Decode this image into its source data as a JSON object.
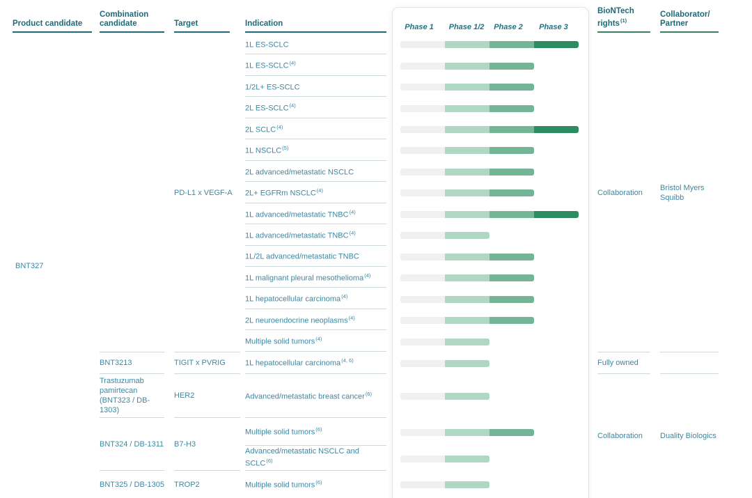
{
  "header": {
    "product": "Product candidate",
    "combination": "Combination candidate",
    "target": "Target",
    "indication": "Indication",
    "rights": "BioNTech rights",
    "rights_note": "(1)",
    "collaborator_line1": "Collaborator/",
    "collaborator_line2": "Partner"
  },
  "pipeline": {
    "product": "BNT327",
    "phases": [
      "Phase 1",
      "Phase 1/2",
      "Phase 2",
      "Phase 3"
    ],
    "phase_colors": [
      "#eff1f0",
      "#afd7c4",
      "#74b497",
      "#2e8c61"
    ],
    "rows": [
      {
        "indication": "1L ES-SCLC",
        "note": "",
        "progress": 4
      },
      {
        "indication": "1L ES-SCLC",
        "note": "(4)",
        "progress": 3
      },
      {
        "indication": "1/2L+ ES-SCLC",
        "note": "",
        "progress": 3
      },
      {
        "indication": "2L ES-SCLC",
        "note": "(4)",
        "progress": 3
      },
      {
        "indication": "2L SCLC",
        "note": "(4)",
        "progress": 4
      },
      {
        "indication": "1L NSCLC",
        "note": "(5)",
        "progress": 3
      },
      {
        "indication": "2L advanced/metastatic NSCLC",
        "note": "",
        "progress": 3
      },
      {
        "indication": "2L+ EGFRm NSCLC",
        "note": "(4)",
        "progress": 3
      },
      {
        "indication": "1L advanced/metastatic TNBC",
        "note": "(4)",
        "progress": 4
      },
      {
        "indication": "1L advanced/metastatic TNBC",
        "note": "(4)",
        "progress": 2
      },
      {
        "indication": "1L/2L advanced/metastatic TNBC",
        "note": "",
        "progress": 3
      },
      {
        "indication": "1L malignant pleural mesothelioma",
        "note": "(4)",
        "progress": 3
      },
      {
        "indication": "1L hepatocellular carcinoma",
        "note": "(4)",
        "progress": 3
      },
      {
        "indication": "2L neuroendocrine neoplasms",
        "note": "(4)",
        "progress": 3
      },
      {
        "indication": "Multiple solid tumors",
        "note": "(4)",
        "progress": 2
      },
      {
        "indication": "1L hepatocellular carcinoma",
        "note": "(4, 6)",
        "progress": 2
      },
      {
        "indication": "Advanced/metastatic breast cancer",
        "note": "(6)",
        "progress": 2
      },
      {
        "indication": "Multiple solid tumors",
        "note": "(6)",
        "progress": 3
      },
      {
        "indication": "Advanced/metastatic NSCLC and SCLC",
        "note": "(6)",
        "progress": 2
      },
      {
        "indication": "Multiple solid tumors",
        "note": "(6)",
        "progress": 2
      }
    ],
    "groups": {
      "bnt327": {
        "target": "PD-L1 x VEGF-A",
        "rights": "Collaboration",
        "partner": "Bristol Myers Squibb"
      },
      "bnt3213": {
        "combination": "BNT3213",
        "target": "TIGIT x PVRIG",
        "rights": "Fully owned"
      },
      "trastuzumab": {
        "combination": "Trastuzumab pamirtecan (BNT323 / DB-1303)",
        "target": "HER2"
      },
      "bnt324": {
        "combination": "BNT324 / DB-1311",
        "target": "B7-H3"
      },
      "bnt325": {
        "combination": "BNT325 / DB-1305",
        "target": "TROP2"
      },
      "duality": {
        "rights": "Collaboration",
        "partner": "Duality Biologics"
      }
    }
  }
}
